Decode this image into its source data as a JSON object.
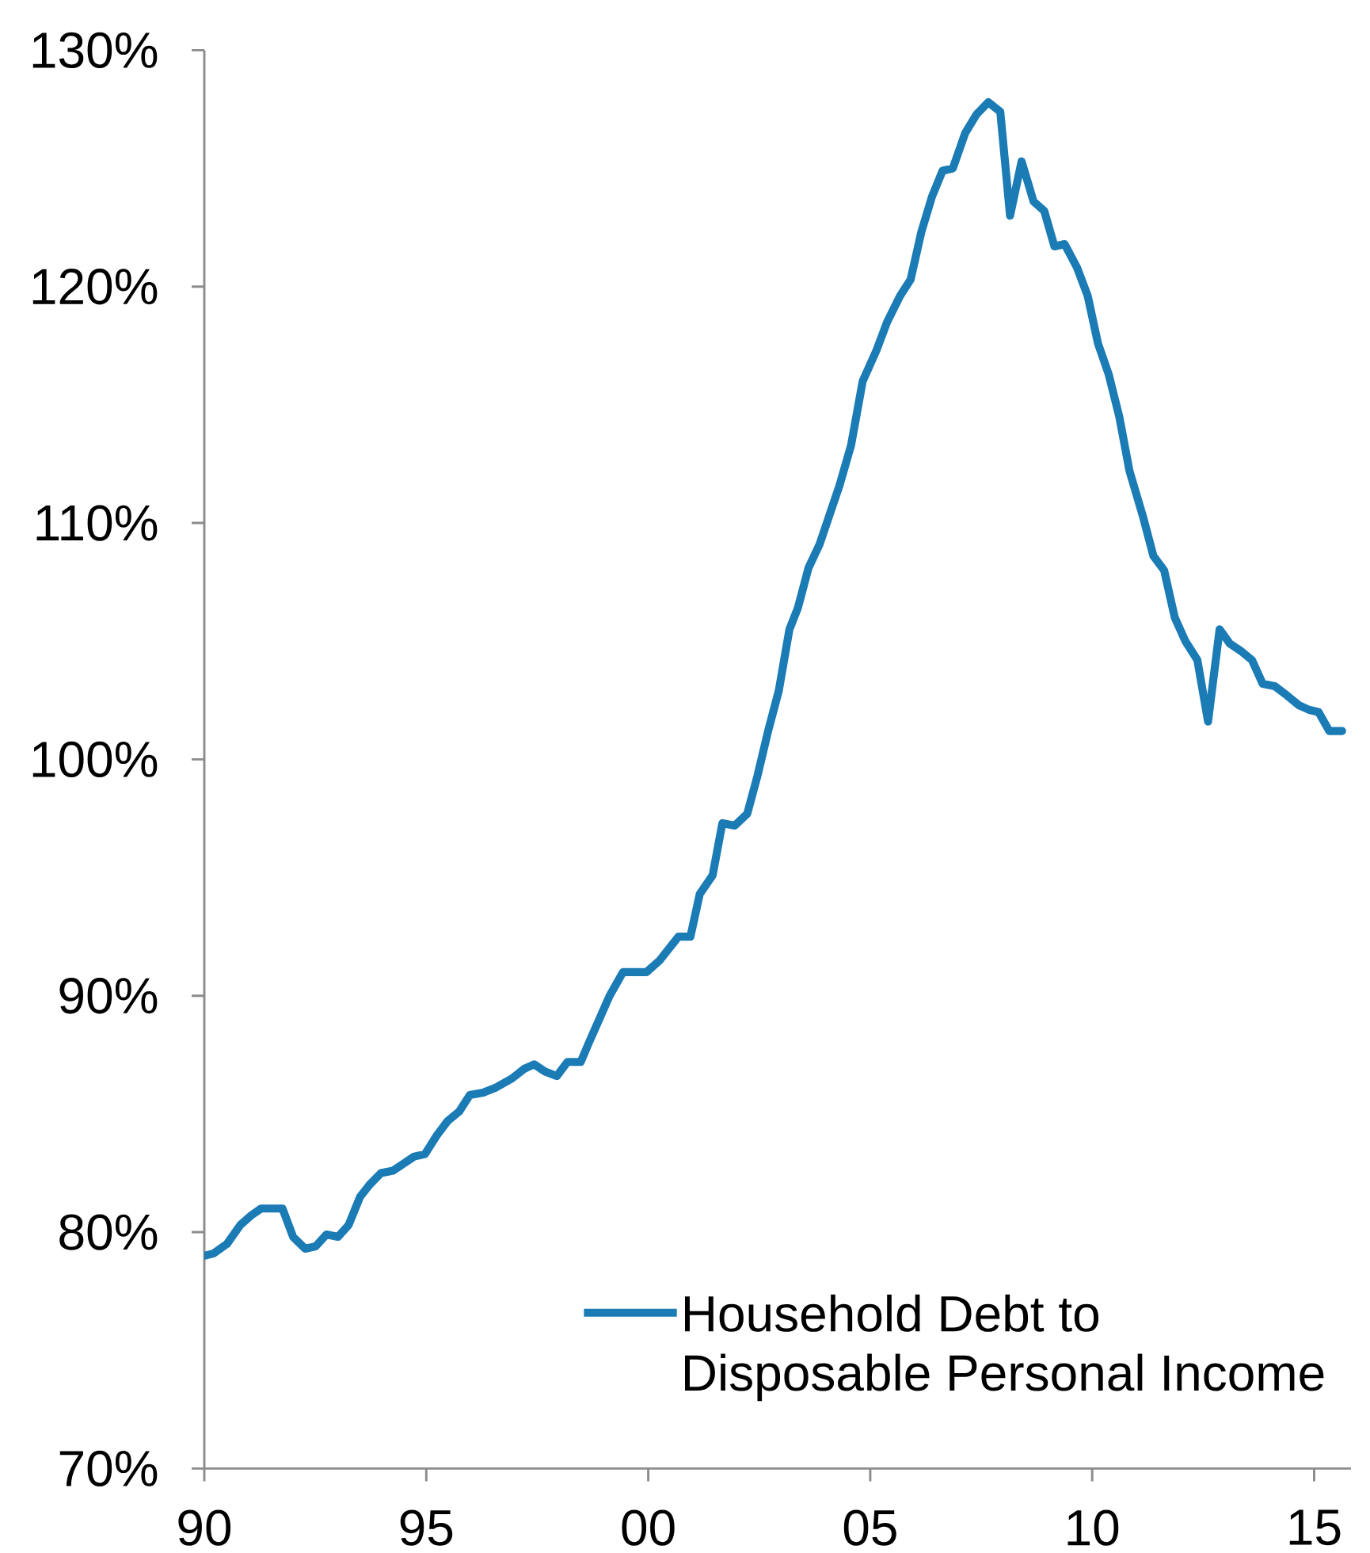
{
  "chart_data": {
    "type": "line",
    "x": [
      1990.0,
      1990.21,
      1990.51,
      1990.81,
      1991.05,
      1991.28,
      1991.76,
      1992.0,
      1992.27,
      1992.51,
      1992.75,
      1993.01,
      1993.25,
      1993.51,
      1993.72,
      1993.98,
      1994.25,
      1994.49,
      1994.73,
      1994.97,
      1995.24,
      1995.48,
      1995.74,
      1995.98,
      1996.28,
      1996.55,
      1996.93,
      1997.2,
      1997.43,
      1997.67,
      1997.94,
      1998.18,
      1998.48,
      1998.66,
      1999.13,
      1999.43,
      1999.96,
      2000.26,
      2000.68,
      2000.95,
      2001.16,
      2001.45,
      2001.67,
      2001.95,
      2002.23,
      2002.46,
      2002.7,
      2002.94,
      2003.18,
      2003.37,
      2003.61,
      2003.86,
      2004.31,
      2004.57,
      2004.83,
      2005.14,
      2005.38,
      2005.67,
      2005.91,
      2006.15,
      2006.39,
      2006.63,
      2006.86,
      2007.14,
      2007.4,
      2007.66,
      2007.93,
      2008.15,
      2008.41,
      2008.68,
      2008.92,
      2009.15,
      2009.38,
      2009.66,
      2009.9,
      2010.13,
      2010.37,
      2010.61,
      2010.84,
      2011.14,
      2011.38,
      2011.62,
      2011.86,
      2012.1,
      2012.37,
      2012.61,
      2012.87,
      2013.1,
      2013.34,
      2013.6,
      2013.84,
      2014.11,
      2014.39,
      2014.65,
      2014.88,
      2015.1,
      2015.34,
      2015.63
    ],
    "series": [
      {
        "name": "Household Debt to Disposable Personal Income",
        "color": "#1a7bb5",
        "values": [
          79.0,
          79.1,
          79.5,
          80.3,
          80.7,
          81.0,
          81.0,
          79.8,
          79.3,
          79.4,
          79.9,
          79.8,
          80.3,
          81.5,
          82.0,
          82.5,
          82.6,
          82.9,
          83.2,
          83.3,
          84.1,
          84.7,
          85.1,
          85.8,
          85.9,
          86.1,
          86.5,
          86.9,
          87.1,
          86.8,
          86.6,
          87.2,
          87.2,
          88.0,
          90.0,
          91.0,
          91.0,
          91.5,
          92.5,
          92.5,
          94.3,
          95.1,
          97.3,
          97.2,
          97.7,
          99.3,
          101.2,
          102.9,
          105.5,
          106.4,
          108.1,
          109.1,
          111.6,
          113.3,
          116.0,
          117.3,
          118.5,
          119.6,
          120.3,
          122.3,
          123.8,
          124.9,
          125.0,
          126.5,
          127.3,
          127.8,
          127.4,
          123.0,
          125.3,
          123.6,
          123.2,
          121.7,
          121.8,
          120.8,
          119.6,
          117.6,
          116.3,
          114.5,
          112.2,
          110.3,
          108.6,
          108.0,
          106.0,
          105.0,
          104.2,
          101.6,
          105.5,
          104.9,
          104.6,
          104.2,
          103.2,
          103.1,
          102.7,
          102.3,
          102.1,
          102.0,
          101.2,
          101.2
        ]
      }
    ],
    "xlim": [
      1990,
      2015.83
    ],
    "xticks": [
      {
        "value": 1990,
        "label": "90"
      },
      {
        "value": 1995,
        "label": "95"
      },
      {
        "value": 2000,
        "label": "00"
      },
      {
        "value": 2005,
        "label": "05"
      },
      {
        "value": 2010,
        "label": "10"
      },
      {
        "value": 2015,
        "label": "15"
      }
    ],
    "ylim": [
      70,
      130
    ],
    "yticks": [
      {
        "value": 70,
        "label": "70%"
      },
      {
        "value": 80,
        "label": "80%"
      },
      {
        "value": 90,
        "label": "90%"
      },
      {
        "value": 100,
        "label": "100%"
      },
      {
        "value": 110,
        "label": "110%"
      },
      {
        "value": 120,
        "label": "120%"
      },
      {
        "value": 130,
        "label": "130%"
      }
    ],
    "legend": "bottom right"
  }
}
